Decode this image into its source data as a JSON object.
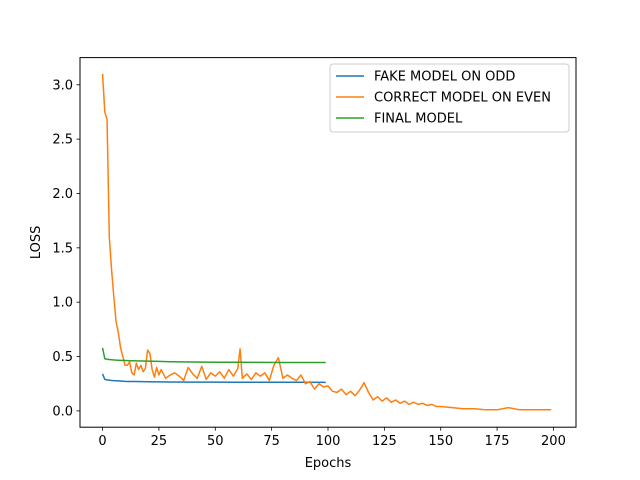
{
  "chart_data": {
    "type": "line",
    "xlabel": "Epochs",
    "ylabel": "LOSS",
    "xlim": [
      -10,
      210
    ],
    "ylim": [
      -0.15,
      3.25
    ],
    "xticks": [
      0,
      25,
      50,
      75,
      100,
      125,
      150,
      175,
      200
    ],
    "yticks": [
      0.0,
      0.5,
      1.0,
      1.5,
      2.0,
      2.5,
      3.0
    ],
    "grid": false,
    "legend": "top-right",
    "series": [
      {
        "name": "FAKE MODEL ON ODD",
        "color": "#1f77b4",
        "x": [
          0,
          1,
          2,
          4,
          6,
          8,
          10,
          12,
          15,
          20,
          25,
          30,
          40,
          50,
          60,
          70,
          80,
          90,
          99
        ],
        "y": [
          0.34,
          0.29,
          0.285,
          0.28,
          0.277,
          0.275,
          0.272,
          0.27,
          0.27,
          0.268,
          0.267,
          0.266,
          0.265,
          0.265,
          0.264,
          0.264,
          0.263,
          0.263,
          0.262
        ]
      },
      {
        "name": "CORRECT MODEL ON EVEN",
        "color": "#ff7f0e",
        "x": [
          0,
          1,
          2,
          3,
          4,
          5,
          6,
          7,
          8,
          9,
          10,
          11,
          12,
          13,
          14,
          15,
          16,
          17,
          18,
          19,
          20,
          21,
          22,
          23,
          24,
          25,
          26,
          28,
          30,
          32,
          34,
          36,
          38,
          40,
          42,
          44,
          46,
          48,
          50,
          52,
          54,
          56,
          58,
          60,
          61,
          62,
          64,
          66,
          68,
          70,
          72,
          74,
          76,
          78,
          80,
          82,
          84,
          86,
          88,
          90,
          92,
          94,
          96,
          98,
          100,
          102,
          104,
          106,
          108,
          110,
          112,
          114,
          116,
          118,
          120,
          122,
          124,
          126,
          128,
          130,
          132,
          134,
          136,
          138,
          140,
          142,
          144,
          146,
          148,
          150,
          155,
          160,
          165,
          170,
          175,
          180,
          185,
          190,
          195,
          199
        ],
        "y": [
          3.1,
          2.75,
          2.68,
          1.6,
          1.3,
          1.05,
          0.82,
          0.72,
          0.58,
          0.5,
          0.42,
          0.42,
          0.45,
          0.35,
          0.33,
          0.44,
          0.38,
          0.42,
          0.36,
          0.39,
          0.56,
          0.53,
          0.38,
          0.31,
          0.4,
          0.33,
          0.38,
          0.3,
          0.33,
          0.35,
          0.32,
          0.28,
          0.4,
          0.34,
          0.3,
          0.41,
          0.29,
          0.35,
          0.32,
          0.36,
          0.3,
          0.38,
          0.32,
          0.39,
          0.57,
          0.3,
          0.34,
          0.29,
          0.35,
          0.32,
          0.35,
          0.28,
          0.42,
          0.49,
          0.3,
          0.33,
          0.3,
          0.28,
          0.33,
          0.25,
          0.27,
          0.2,
          0.25,
          0.22,
          0.23,
          0.18,
          0.17,
          0.2,
          0.15,
          0.18,
          0.14,
          0.19,
          0.26,
          0.17,
          0.1,
          0.13,
          0.09,
          0.12,
          0.08,
          0.1,
          0.07,
          0.09,
          0.06,
          0.08,
          0.06,
          0.07,
          0.05,
          0.06,
          0.04,
          0.04,
          0.03,
          0.02,
          0.02,
          0.01,
          0.01,
          0.03,
          0.01,
          0.01,
          0.01,
          0.01
        ]
      },
      {
        "name": "FINAL MODEL",
        "color": "#2ca02c",
        "x": [
          0,
          1,
          2,
          4,
          6,
          8,
          10,
          15,
          20,
          25,
          30,
          40,
          50,
          60,
          70,
          80,
          90,
          99
        ],
        "y": [
          0.58,
          0.48,
          0.475,
          0.47,
          0.467,
          0.465,
          0.463,
          0.46,
          0.458,
          0.455,
          0.452,
          0.45,
          0.448,
          0.447,
          0.446,
          0.445,
          0.445,
          0.445
        ]
      }
    ]
  }
}
